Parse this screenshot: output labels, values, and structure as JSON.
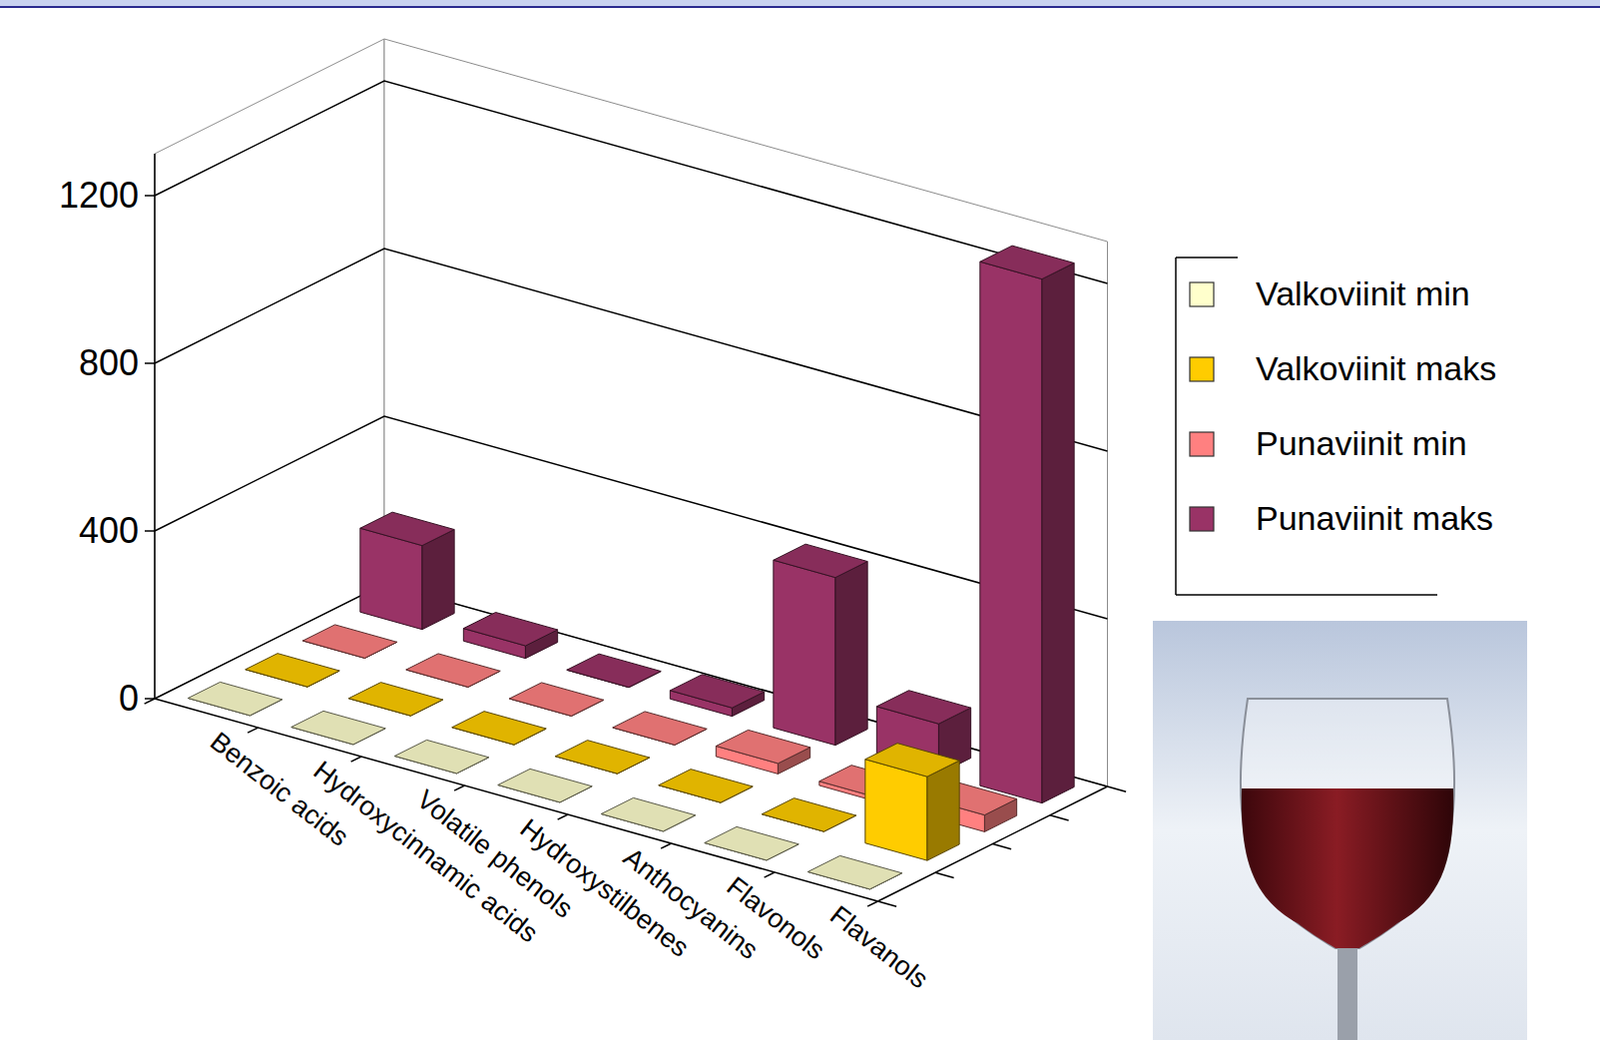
{
  "chart_data": {
    "type": "bar",
    "categories": [
      "Benzoic acids",
      "Hydroxycinnamic acids",
      "Volatile phenols",
      "Hydroxystilbenes",
      "Anthocyanins",
      "Flavonols",
      "Flavanols"
    ],
    "series": [
      {
        "name": "Valkoviinit min",
        "color": "#ffffcc",
        "values": [
          0,
          0,
          0,
          0,
          0,
          0,
          0
        ]
      },
      {
        "name": "Valkoviinit maks",
        "color": "#ffcc00",
        "values": [
          0,
          0,
          0,
          0,
          0,
          0,
          200
        ]
      },
      {
        "name": "Punaviinit min",
        "color": "#ff8080",
        "values": [
          0,
          0,
          0,
          0,
          25,
          10,
          40
        ]
      },
      {
        "name": "Punaviinit maks",
        "color": "#993366",
        "values": [
          200,
          30,
          0,
          20,
          400,
          120,
          1250
        ]
      }
    ],
    "ylim": [
      0,
      1300
    ],
    "yticks": [
      0,
      400,
      800,
      1200
    ],
    "grid": true,
    "legend": "right"
  }
}
